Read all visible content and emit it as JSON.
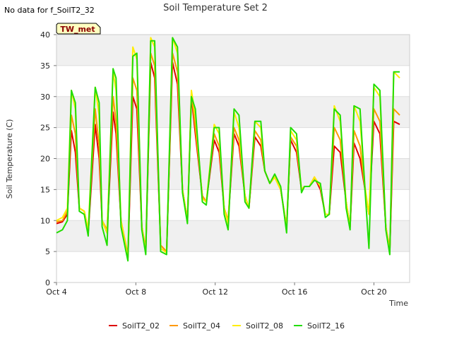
{
  "chart_data": {
    "type": "line",
    "title": "Soil Temperature Set 2",
    "no_data_note": "No data for f_SoilT2_32",
    "site_badge": "TW_met",
    "xlabel": "Time",
    "ylabel": "Soil Temperature (C)",
    "xlim": [
      4,
      21.8
    ],
    "ylim": [
      0,
      40
    ],
    "x_ticks": [
      {
        "value": 4,
        "label": "Oct 4"
      },
      {
        "value": 8,
        "label": "Oct 8"
      },
      {
        "value": 12,
        "label": "Oct 12"
      },
      {
        "value": 16,
        "label": "Oct 16"
      },
      {
        "value": 20,
        "label": "Oct 20"
      }
    ],
    "y_ticks": [
      0,
      5,
      10,
      15,
      20,
      25,
      30,
      35,
      40
    ],
    "grid": "horizontal-bands",
    "legend_position": "bottom",
    "x": [
      4.0,
      4.3,
      4.55,
      4.75,
      4.95,
      5.15,
      5.4,
      5.6,
      5.95,
      6.15,
      6.3,
      6.55,
      6.85,
      7.0,
      7.25,
      7.6,
      7.85,
      8.05,
      8.3,
      8.5,
      8.75,
      8.95,
      9.25,
      9.55,
      9.85,
      10.1,
      10.35,
      10.6,
      10.8,
      11.0,
      11.35,
      11.55,
      11.95,
      12.2,
      12.45,
      12.65,
      12.95,
      13.2,
      13.5,
      13.7,
      14.0,
      14.3,
      14.5,
      14.75,
      15.0,
      15.3,
      15.6,
      15.8,
      16.1,
      16.35,
      16.5,
      16.75,
      17.0,
      17.3,
      17.55,
      17.75,
      18.0,
      18.3,
      18.6,
      18.8,
      19.0,
      19.3,
      19.55,
      19.75,
      20.0,
      20.3,
      20.6,
      20.8,
      21.0,
      21.3
    ],
    "series": [
      {
        "name": "SoilT2_02",
        "color": "#dd0000",
        "values": [
          9.5,
          9.8,
          11,
          24.5,
          21,
          12,
          11.5,
          8,
          25.5,
          20,
          10,
          8,
          27.5,
          24,
          10,
          4,
          30,
          28,
          9,
          5,
          35.5,
          33,
          6,
          5,
          35.5,
          32,
          15,
          10,
          30,
          24,
          14,
          13,
          23,
          21,
          12,
          10,
          24,
          22,
          14,
          12,
          23.5,
          22,
          18,
          16,
          17,
          15,
          9,
          23,
          21,
          15,
          15.5,
          15.5,
          17,
          15,
          11,
          11,
          22,
          21,
          13,
          9,
          22.5,
          20,
          15,
          11,
          26,
          24,
          9,
          5,
          26,
          25.5
        ]
      },
      {
        "name": "SoilT2_04",
        "color": "#ff9900",
        "values": [
          9.8,
          10,
          11.5,
          27,
          24,
          12,
          11.5,
          8.5,
          28,
          22,
          10,
          8.5,
          30,
          26,
          10,
          4.5,
          33,
          31,
          9,
          5.5,
          37,
          35,
          6,
          5,
          37,
          34,
          15,
          10,
          30.5,
          25,
          14,
          13,
          24,
          22,
          12,
          10,
          25,
          23,
          14,
          12,
          24.5,
          23,
          18,
          16,
          17,
          15,
          9,
          23.5,
          22,
          15,
          15.5,
          15.5,
          17,
          15.5,
          11,
          11,
          25,
          23,
          13,
          9,
          24.5,
          22,
          15,
          11,
          28,
          26,
          9,
          5.5,
          28,
          27
        ]
      },
      {
        "name": "SoilT2_08",
        "color": "#ffee00",
        "values": [
          10,
          10.5,
          12,
          31,
          28,
          12,
          11.5,
          8.5,
          31.5,
          27,
          10,
          8,
          34,
          31,
          10,
          4,
          38,
          36,
          9,
          5,
          39.5,
          38,
          5.5,
          4.8,
          39.5,
          37,
          15,
          10,
          31,
          27,
          13.5,
          13,
          25.5,
          24,
          12,
          9.5,
          27.5,
          25,
          14,
          12,
          26,
          25,
          18,
          16,
          17,
          15,
          9,
          24.5,
          23,
          15,
          15.5,
          15.5,
          17,
          15.5,
          11,
          11,
          28.5,
          26,
          13,
          9,
          28.5,
          26,
          15.5,
          11,
          31.5,
          30,
          9,
          5,
          34,
          33
        ]
      },
      {
        "name": "SoilT2_16",
        "color": "#22dd00",
        "values": [
          8,
          8.5,
          10,
          31,
          29,
          11.5,
          11,
          7.5,
          31.5,
          29,
          9,
          6,
          34.5,
          33,
          9,
          3.5,
          36.5,
          37,
          8.5,
          4.5,
          39,
          39,
          5,
          4.5,
          39.5,
          38,
          14.5,
          9.5,
          30,
          28,
          13,
          12.5,
          25,
          25,
          11,
          8.5,
          28,
          27,
          13,
          12,
          26,
          26,
          18,
          16,
          17.5,
          15.5,
          8,
          25,
          24,
          14.5,
          15.5,
          15.5,
          16.5,
          16,
          10.5,
          11,
          28,
          27,
          12,
          8.5,
          28.5,
          28,
          15,
          5.5,
          32,
          31,
          8.5,
          4.5,
          34,
          34
        ]
      }
    ]
  }
}
